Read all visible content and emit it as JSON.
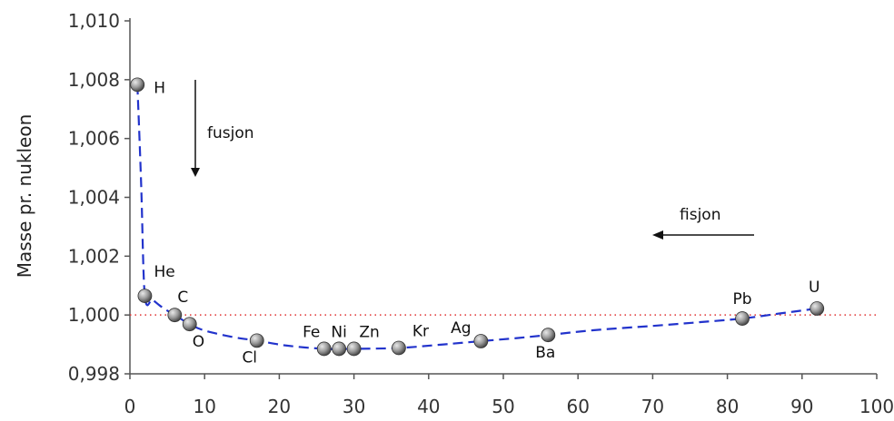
{
  "chart_data": {
    "type": "scatter",
    "title": "",
    "xlabel": "",
    "ylabel": "Masse pr. nukleon",
    "xlim": [
      0,
      100
    ],
    "ylim": [
      0.998,
      1.01
    ],
    "x_ticks": [
      0,
      10,
      20,
      30,
      40,
      50,
      60,
      70,
      80,
      90,
      100
    ],
    "x_tick_labels": [
      "0",
      "10",
      "20",
      "30",
      "40",
      "50",
      "60",
      "70",
      "80",
      "90",
      "100"
    ],
    "y_ticks": [
      0.998,
      1.0,
      1.002,
      1.004,
      1.006,
      1.008,
      1.01
    ],
    "y_tick_labels": [
      "0,998",
      "1,000",
      "1,002",
      "1,004",
      "1,006",
      "1,008",
      "1,010"
    ],
    "grid": false,
    "reference_line": {
      "y": 1.0,
      "color": "#e03030",
      "style": "dotted"
    },
    "series": [
      {
        "points": [
          {
            "label": "H",
            "x": 1,
            "y": 1.00783
          },
          {
            "label": "He",
            "x": 2,
            "y": 1.00065
          },
          {
            "label": "C",
            "x": 6,
            "y": 1.0
          },
          {
            "label": "O",
            "x": 8,
            "y": 0.99969
          },
          {
            "label": "Cl",
            "x": 17,
            "y": 0.99913
          },
          {
            "label": "Fe",
            "x": 26,
            "y": 0.99885
          },
          {
            "label": "Ni",
            "x": 28,
            "y": 0.99885
          },
          {
            "label": "Zn",
            "x": 30,
            "y": 0.99885
          },
          {
            "label": "Kr",
            "x": 36,
            "y": 0.99888
          },
          {
            "label": "Ag",
            "x": 47,
            "y": 0.99911
          },
          {
            "label": "Ba",
            "x": 56,
            "y": 0.99932
          },
          {
            "label": "Pb",
            "x": 82,
            "y": 0.99988
          },
          {
            "label": "U",
            "x": 92,
            "y": 1.00022
          }
        ]
      }
    ],
    "trend_curve": {
      "color": "#2233cc",
      "style": "dashed",
      "x": [
        1,
        1.5,
        2,
        3,
        4,
        5,
        6,
        8,
        10,
        14,
        17,
        21,
        26,
        30,
        36,
        42,
        47,
        52,
        56,
        62,
        70,
        76,
        82,
        87,
        92
      ],
      "y": [
        1.00783,
        1.0045,
        1.00065,
        1.00052,
        1.00032,
        1.00015,
        1.0,
        0.99969,
        0.99947,
        0.99924,
        0.99913,
        0.99896,
        0.99885,
        0.99885,
        0.99888,
        0.999,
        0.99911,
        0.99922,
        0.99932,
        0.99948,
        0.99963,
        0.99975,
        0.99988,
        1.00005,
        1.00022
      ]
    },
    "annotations": [
      {
        "text": "fusjon",
        "arrow": "down"
      },
      {
        "text": "fisjon",
        "arrow": "left"
      }
    ],
    "marker_colors": {
      "light": "#e8e8e8",
      "mid": "#9a9a9a",
      "dark": "#444444"
    },
    "text_color": "#111111"
  }
}
